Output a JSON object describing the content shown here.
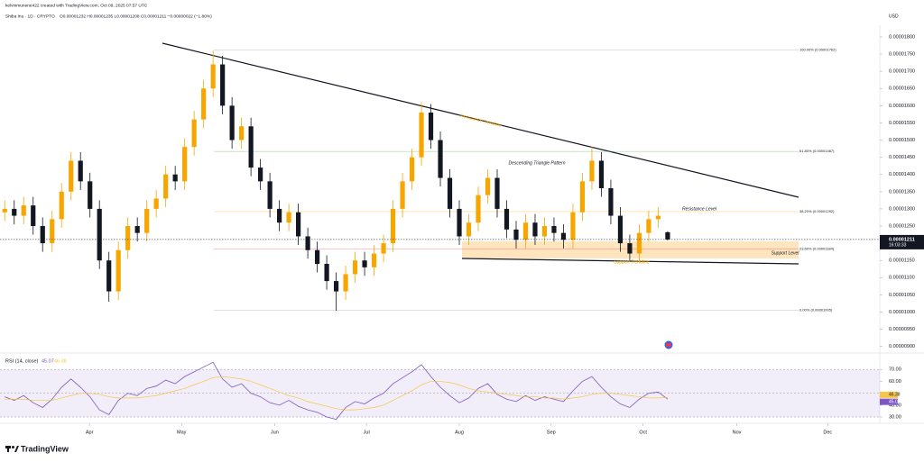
{
  "header": {
    "author": "kelvinmunene422 created with TradingView.com, Oct 09, 2025 07:57 UTC",
    "symbol": "Shiba Inu · 1D · CRYPTO",
    "ohlc": "O0.00001232 H0.00001235 L0.00001208 C0.00001211 −0.00000022 (−1.80%)",
    "logo": "TradingView"
  },
  "chart_data": [
    {
      "type": "candlestick",
      "currency": "USD",
      "countdown": "16:03:33",
      "up_color": "#f7a600",
      "down_color": "#131722",
      "open": [
        1.29e-05,
        1.3e-05,
        1.28e-05,
        1.31e-05,
        1.25e-05,
        1.2e-05,
        1.27e-05,
        1.35e-05,
        1.44e-05,
        1.38e-05,
        1.3e-05,
        1.15e-05,
        1.06e-05,
        1.18e-05,
        1.25e-05,
        1.23e-05,
        1.3e-05,
        1.33e-05,
        1.4e-05,
        1.38e-05,
        1.48e-05,
        1.56e-05,
        1.65e-05,
        1.72e-05,
        1.6e-05,
        1.5e-05,
        1.54e-05,
        1.42e-05,
        1.38e-05,
        1.3e-05,
        1.26e-05,
        1.29e-05,
        1.22e-05,
        1.18e-05,
        1.14e-05,
        1.09e-05,
        1.06e-05,
        1.11e-05,
        1.15e-05,
        1.13e-05,
        1.17e-05,
        1.2e-05,
        1.3e-05,
        1.38e-05,
        1.45e-05,
        1.58e-05,
        1.5e-05,
        1.39e-05,
        1.3e-05,
        1.22e-05,
        1.26e-05,
        1.34e-05,
        1.39e-05,
        1.3e-05,
        1.24e-05,
        1.21e-05,
        1.26e-05,
        1.22e-05,
        1.25e-05,
        1.23e-05,
        1.21e-05,
        1.29e-05,
        1.38e-05,
        1.44e-05,
        1.36e-05,
        1.28e-05,
        1.2e-05,
        1.17e-05,
        1.23e-05,
        1.27e-05,
        1.232e-05
      ],
      "high": [
        1.325e-05,
        1.325e-05,
        1.335e-05,
        1.335e-05,
        1.275e-05,
        1.295e-05,
        1.375e-05,
        1.465e-05,
        1.465e-05,
        1.405e-05,
        1.325e-05,
        1.175e-05,
        1.205e-05,
        1.275e-05,
        1.275e-05,
        1.325e-05,
        1.355e-05,
        1.425e-05,
        1.425e-05,
        1.505e-05,
        1.585e-05,
        1.675e-05,
        1.76e-05,
        1.745e-05,
        1.625e-05,
        1.565e-05,
        1.565e-05,
        1.445e-05,
        1.405e-05,
        1.325e-05,
        1.315e-05,
        1.315e-05,
        1.245e-05,
        1.205e-05,
        1.165e-05,
        1.115e-05,
        1.135e-05,
        1.175e-05,
        1.175e-05,
        1.195e-05,
        1.225e-05,
        1.325e-05,
        1.405e-05,
        1.475e-05,
        1.61e-05,
        1.605e-05,
        1.525e-05,
        1.415e-05,
        1.325e-05,
        1.285e-05,
        1.365e-05,
        1.415e-05,
        1.415e-05,
        1.325e-05,
        1.265e-05,
        1.285e-05,
        1.285e-05,
        1.275e-05,
        1.275e-05,
        1.255e-05,
        1.315e-05,
        1.405e-05,
        1.48e-05,
        1.465e-05,
        1.385e-05,
        1.305e-05,
        1.225e-05,
        1.255e-05,
        1.295e-05,
        1.305e-05,
        1.235e-05
      ],
      "low": [
        1.265e-05,
        1.255e-05,
        1.255e-05,
        1.225e-05,
        1.175e-05,
        1.175e-05,
        1.245e-05,
        1.325e-05,
        1.355e-05,
        1.275e-05,
        1.125e-05,
        1.03e-05,
        1.035e-05,
        1.155e-05,
        1.205e-05,
        1.205e-05,
        1.275e-05,
        1.305e-05,
        1.355e-05,
        1.355e-05,
        1.455e-05,
        1.535e-05,
        1.625e-05,
        1.575e-05,
        1.475e-05,
        1.475e-05,
        1.395e-05,
        1.355e-05,
        1.275e-05,
        1.235e-05,
        1.235e-05,
        1.195e-05,
        1.155e-05,
        1.115e-05,
        1.065e-05,
        1.004e-05,
        1.035e-05,
        1.085e-05,
        1.105e-05,
        1.105e-05,
        1.145e-05,
        1.175e-05,
        1.275e-05,
        1.355e-05,
        1.425e-05,
        1.475e-05,
        1.365e-05,
        1.275e-05,
        1.195e-05,
        1.195e-05,
        1.235e-05,
        1.315e-05,
        1.275e-05,
        1.215e-05,
        1.185e-05,
        1.185e-05,
        1.195e-05,
        1.195e-05,
        1.205e-05,
        1.185e-05,
        1.185e-05,
        1.265e-05,
        1.355e-05,
        1.335e-05,
        1.255e-05,
        1.175e-05,
        1.15e-05,
        1.145e-05,
        1.205e-05,
        1.245e-05,
        1.208e-05
      ],
      "close": [
        1.3e-05,
        1.28e-05,
        1.31e-05,
        1.25e-05,
        1.2e-05,
        1.27e-05,
        1.35e-05,
        1.44e-05,
        1.38e-05,
        1.3e-05,
        1.15e-05,
        1.06e-05,
        1.18e-05,
        1.25e-05,
        1.23e-05,
        1.3e-05,
        1.33e-05,
        1.4e-05,
        1.38e-05,
        1.48e-05,
        1.56e-05,
        1.65e-05,
        1.72e-05,
        1.6e-05,
        1.5e-05,
        1.54e-05,
        1.42e-05,
        1.38e-05,
        1.3e-05,
        1.26e-05,
        1.29e-05,
        1.22e-05,
        1.18e-05,
        1.14e-05,
        1.09e-05,
        1.06e-05,
        1.11e-05,
        1.15e-05,
        1.13e-05,
        1.17e-05,
        1.2e-05,
        1.3e-05,
        1.38e-05,
        1.45e-05,
        1.58e-05,
        1.5e-05,
        1.39e-05,
        1.3e-05,
        1.22e-05,
        1.26e-05,
        1.34e-05,
        1.39e-05,
        1.3e-05,
        1.24e-05,
        1.21e-05,
        1.26e-05,
        1.22e-05,
        1.25e-05,
        1.23e-05,
        1.21e-05,
        1.29e-05,
        1.38e-05,
        1.44e-05,
        1.36e-05,
        1.28e-05,
        1.2e-05,
        1.17e-05,
        1.23e-05,
        1.27e-05,
        1.28e-05,
        1.211e-05
      ],
      "ylim": [
        8.86e-06,
        1.834e-05
      ],
      "yticks": [
        {
          "value": 1.8e-05,
          "label": "0.00001800"
        },
        {
          "value": 1.75e-05,
          "label": "0.00001750"
        },
        {
          "value": 1.7e-05,
          "label": "0.00001700"
        },
        {
          "value": 1.65e-05,
          "label": "0.00001650"
        },
        {
          "value": 1.6e-05,
          "label": "0.00001600"
        },
        {
          "value": 1.55e-05,
          "label": "0.00001550"
        },
        {
          "value": 1.5e-05,
          "label": "0.00001500"
        },
        {
          "value": 1.45e-05,
          "label": "0.00001450"
        },
        {
          "value": 1.4e-05,
          "label": "0.00001400"
        },
        {
          "value": 1.35e-05,
          "label": "0.00001350"
        },
        {
          "value": 1.3e-05,
          "label": "0.00001300"
        },
        {
          "value": 1.25e-05,
          "label": "0.00001250"
        },
        {
          "value": 1.2e-05,
          "label": "0.00001200"
        },
        {
          "value": 1.15e-05,
          "label": "0.00001150"
        },
        {
          "value": 1.1e-05,
          "label": "0.00001100"
        },
        {
          "value": 1.05e-05,
          "label": "0.00001050"
        },
        {
          "value": 1e-05,
          "label": "0.00001000"
        },
        {
          "value": 9.5e-06,
          "label": "0.00000950"
        },
        {
          "value": 9e-06,
          "label": "0.00000900"
        }
      ],
      "xlim": [
        -0.5,
        92.4
      ],
      "xticks": [
        {
          "value": 8.95,
          "label": "Apr"
        },
        {
          "value": 18.67,
          "label": "May"
        },
        {
          "value": 28.5,
          "label": "Jun"
        },
        {
          "value": 38.2,
          "label": "Jul"
        },
        {
          "value": 48,
          "label": "Aug"
        },
        {
          "value": 57.7,
          "label": "Sep"
        },
        {
          "value": 67.4,
          "label": "Oct"
        },
        {
          "value": 77.3,
          "label": "Nov"
        },
        {
          "value": 86.9,
          "label": "Dec"
        }
      ],
      "fib_levels": [
        {
          "value": 1.762e-05,
          "label": "100.00% (0.00001762)",
          "color": "#9598a1"
        },
        {
          "value": 1.467e-05,
          "label": "61.80% (0.00001467)",
          "color": "#4caf50"
        },
        {
          "value": 1.292e-05,
          "label": "38.20% (0.00001292)",
          "color": "#f7a600"
        },
        {
          "value": 1.184e-05,
          "label": "23.60% (0.00001184)",
          "color": "#f23645"
        },
        {
          "value": 1.005e-05,
          "label": "0.00% (0.00001005)",
          "color": "#9598a1"
        }
      ],
      "annotations": [
        "Resistance Trendline",
        "Descending Triangle Pattern",
        "Resistance Level",
        "Support Level",
        "Support Trendline"
      ]
    },
    {
      "type": "line",
      "title": "RSI (14, close)",
      "series": [
        {
          "color": "#7e57c2",
          "values": [
            47,
            44,
            48,
            42,
            38,
            45,
            55,
            62,
            55,
            47,
            36,
            32,
            44,
            50,
            48,
            54,
            56,
            61,
            58,
            64,
            68,
            72,
            76,
            62,
            55,
            58,
            50,
            47,
            42,
            40,
            44,
            39,
            36,
            34,
            30,
            28,
            38,
            43,
            41,
            46,
            50,
            58,
            63,
            68,
            74,
            64,
            55,
            48,
            42,
            46,
            54,
            58,
            49,
            45,
            43,
            48,
            44,
            47,
            45,
            43,
            52,
            60,
            64,
            55,
            47,
            41,
            38,
            45,
            50,
            51,
            45.07
          ]
        },
        {
          "color": "#f7c548",
          "values": [
            45,
            45,
            45,
            44,
            44,
            44,
            46,
            48,
            50,
            50,
            49,
            47,
            46,
            46,
            46,
            47,
            48,
            50,
            52,
            54,
            57,
            60,
            63,
            64,
            63,
            62,
            60,
            57,
            54,
            51,
            48,
            46,
            43,
            41,
            39,
            37,
            36,
            36,
            37,
            38,
            40,
            44,
            48,
            52,
            57,
            60,
            60,
            59,
            57,
            54,
            52,
            51,
            50,
            49,
            48,
            47,
            47,
            46,
            46,
            45,
            46,
            47,
            49,
            50,
            50,
            49,
            48,
            47,
            46,
            46,
            46.38
          ]
        }
      ],
      "ylim": [
        27,
        80
      ],
      "yticks": [
        {
          "value": 70,
          "label": "70.00"
        },
        {
          "value": 60,
          "label": "60.00"
        },
        {
          "value": 40,
          "label": "40.00"
        },
        {
          "value": 30,
          "label": "30.00"
        }
      ],
      "levels": [
        70,
        50,
        30
      ],
      "band": [
        30,
        70
      ]
    }
  ]
}
